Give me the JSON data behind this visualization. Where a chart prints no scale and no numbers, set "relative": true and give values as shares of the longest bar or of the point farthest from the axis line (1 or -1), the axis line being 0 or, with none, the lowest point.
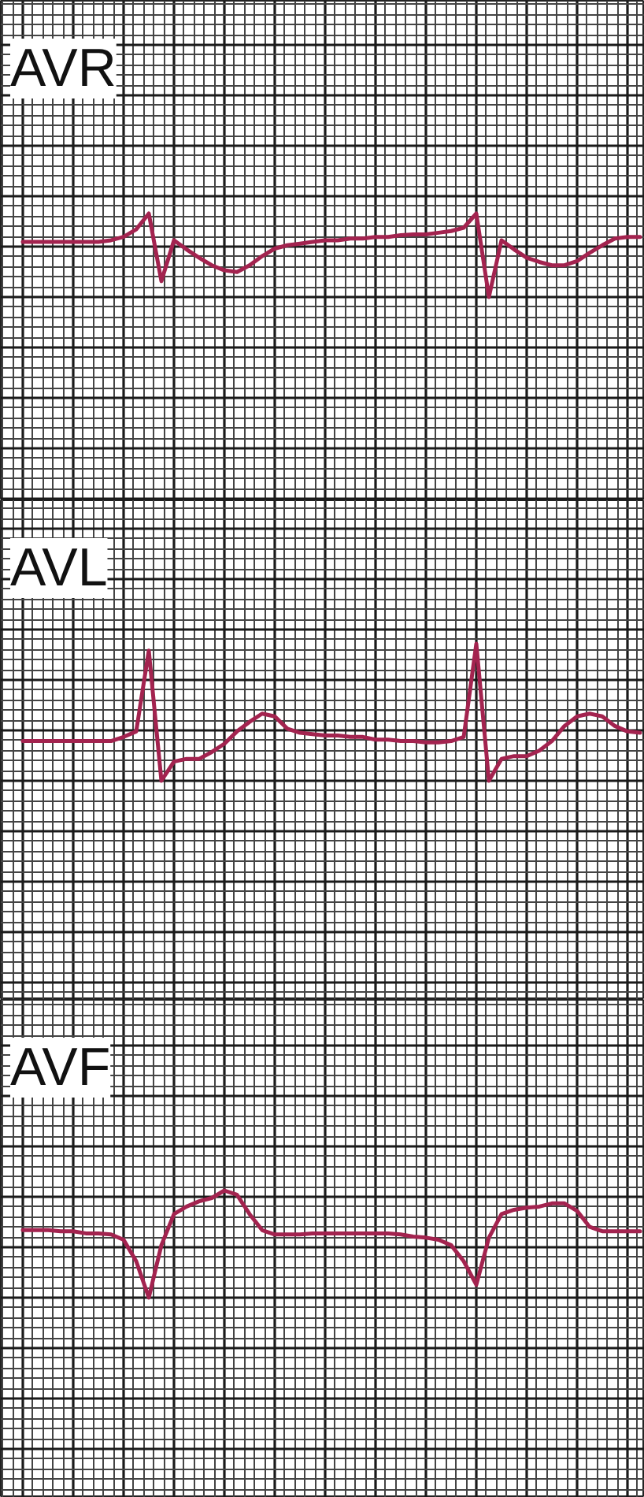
{
  "chart_data": [
    {
      "type": "line",
      "title": "AVR",
      "relative": true,
      "grid": true,
      "categories": [
        null,
        null,
        null,
        null,
        null,
        null,
        null,
        null,
        null,
        null,
        null,
        null,
        null,
        null,
        null,
        null,
        null,
        null,
        null,
        null,
        null,
        null,
        null,
        null,
        null,
        null,
        null,
        null,
        null,
        null,
        null,
        null,
        null,
        null,
        null,
        null,
        null,
        null,
        null,
        null,
        null,
        null,
        null,
        null,
        null,
        null,
        null,
        null,
        null,
        null
      ],
      "series": [
        {
          "color": "#a3234f",
          "values": [
            0.66,
            0.66,
            0.66,
            0.66,
            0.66,
            0.66,
            0.66,
            0.68,
            0.72,
            0.81,
            1,
            0.19,
            0.68,
            0.57,
            0.47,
            0.38,
            0.32,
            0.3,
            0.38,
            0.49,
            0.58,
            0.62,
            0.64,
            0.66,
            0.68,
            0.68,
            0.7,
            0.7,
            0.72,
            0.72,
            0.74,
            0.75,
            0.75,
            0.77,
            0.79,
            0.83,
            1,
            0,
            0.68,
            0.57,
            0.47,
            0.42,
            0.38,
            0.38,
            0.43,
            0.53,
            0.62,
            0.7,
            0.72,
            0.72
          ]
        }
      ]
    },
    {
      "type": "line",
      "title": "AVL",
      "relative": true,
      "grid": true,
      "categories": [
        null,
        null,
        null,
        null,
        null,
        null,
        null,
        null,
        null,
        null,
        null,
        null,
        null,
        null,
        null,
        null,
        null,
        null,
        null,
        null,
        null,
        null,
        null,
        null,
        null,
        null,
        null,
        null,
        null,
        null,
        null,
        null,
        null,
        null,
        null,
        null,
        null,
        null,
        null,
        null,
        null,
        null,
        null,
        null,
        null,
        null,
        null,
        null,
        null,
        null
      ],
      "series": [
        {
          "color": "#a3234f",
          "values": [
            0.29,
            0.29,
            0.29,
            0.29,
            0.29,
            0.29,
            0.29,
            0.29,
            0.32,
            0.36,
            0.95,
            0,
            0.14,
            0.16,
            0.16,
            0.21,
            0.27,
            0.36,
            0.43,
            0.49,
            0.47,
            0.38,
            0.35,
            0.34,
            0.33,
            0.33,
            0.32,
            0.32,
            0.3,
            0.3,
            0.29,
            0.29,
            0.28,
            0.28,
            0.29,
            0.32,
            1,
            0,
            0.16,
            0.18,
            0.18,
            0.22,
            0.29,
            0.4,
            0.47,
            0.49,
            0.47,
            0.4,
            0.36,
            0.35
          ]
        }
      ]
    },
    {
      "type": "line",
      "title": "AVF",
      "relative": true,
      "grid": true,
      "categories": [
        null,
        null,
        null,
        null,
        null,
        null,
        null,
        null,
        null,
        null,
        null,
        null,
        null,
        null,
        null,
        null,
        null,
        null,
        null,
        null,
        null,
        null,
        null,
        null,
        null,
        null,
        null,
        null,
        null,
        null,
        null,
        null,
        null,
        null,
        null,
        null,
        null,
        null,
        null,
        null,
        null,
        null,
        null,
        null,
        null,
        null,
        null,
        null,
        null,
        null
      ],
      "series": [
        {
          "color": "#a3234f",
          "values": [
            0.63,
            0.63,
            0.63,
            0.62,
            0.62,
            0.6,
            0.6,
            0.59,
            0.54,
            0.34,
            0,
            0.49,
            0.78,
            0.85,
            0.9,
            0.93,
            1,
            0.96,
            0.78,
            0.63,
            0.59,
            0.59,
            0.59,
            0.6,
            0.6,
            0.6,
            0.6,
            0.6,
            0.6,
            0.6,
            0.59,
            0.57,
            0.56,
            0.54,
            0.49,
            0.34,
            0.12,
            0.56,
            0.78,
            0.82,
            0.84,
            0.85,
            0.88,
            0.88,
            0.81,
            0.66,
            0.62,
            0.62,
            0.62,
            0.62
          ]
        }
      ]
    }
  ]
}
